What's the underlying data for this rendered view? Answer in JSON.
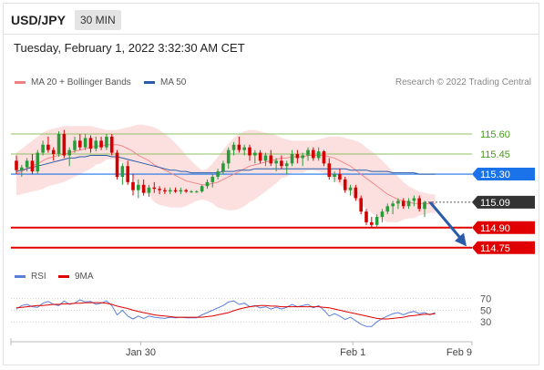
{
  "header": {
    "symbol": "USD/JPY",
    "timeframe": "30 MIN",
    "timestamp": "Tuesday, February 1, 2022 3:32:30 AM CET"
  },
  "legend": {
    "ma_bb": {
      "label": "MA 20 + Bollinger Bands",
      "color": "#f08080"
    },
    "ma50": {
      "label": "MA 50",
      "color": "#2a5aa8"
    },
    "rsi": {
      "label": "RSI",
      "color": "#5a7fd8"
    },
    "ma9": {
      "label": "9MA",
      "color": "#e00000"
    }
  },
  "research": "Research © 2022 Trading Central",
  "chart_data": {
    "type": "candlestick",
    "price_levels": [
      {
        "value": 115.6,
        "label": "115.60",
        "kind": "resistance",
        "color": "#8cc060"
      },
      {
        "value": 115.45,
        "label": "115.45",
        "kind": "resistance",
        "color": "#8cc060"
      },
      {
        "value": 115.3,
        "label": "115.30",
        "kind": "pivot",
        "color": "#1a73e8"
      },
      {
        "value": 115.09,
        "label": "115.09",
        "kind": "current",
        "color": "#333333"
      },
      {
        "value": 114.9,
        "label": "114.90",
        "kind": "support",
        "color": "#e00000"
      },
      {
        "value": 114.75,
        "label": "114.75",
        "kind": "support",
        "color": "#e00000"
      }
    ],
    "ylim": [
      114.66,
      115.75
    ],
    "candles": [
      {
        "o": 115.4,
        "h": 115.44,
        "l": 115.3,
        "c": 115.33
      },
      {
        "o": 115.33,
        "h": 115.37,
        "l": 115.28,
        "c": 115.35
      },
      {
        "o": 115.35,
        "h": 115.42,
        "l": 115.32,
        "c": 115.4
      },
      {
        "o": 115.4,
        "h": 115.45,
        "l": 115.3,
        "c": 115.32
      },
      {
        "o": 115.32,
        "h": 115.48,
        "l": 115.3,
        "c": 115.46
      },
      {
        "o": 115.46,
        "h": 115.55,
        "l": 115.44,
        "c": 115.52
      },
      {
        "o": 115.52,
        "h": 115.58,
        "l": 115.46,
        "c": 115.48
      },
      {
        "o": 115.48,
        "h": 115.5,
        "l": 115.4,
        "c": 115.45
      },
      {
        "o": 115.45,
        "h": 115.62,
        "l": 115.43,
        "c": 115.6
      },
      {
        "o": 115.6,
        "h": 115.63,
        "l": 115.42,
        "c": 115.44
      },
      {
        "o": 115.44,
        "h": 115.5,
        "l": 115.36,
        "c": 115.48
      },
      {
        "o": 115.48,
        "h": 115.58,
        "l": 115.46,
        "c": 115.55
      },
      {
        "o": 115.55,
        "h": 115.6,
        "l": 115.48,
        "c": 115.5
      },
      {
        "o": 115.5,
        "h": 115.6,
        "l": 115.48,
        "c": 115.57
      },
      {
        "o": 115.57,
        "h": 115.59,
        "l": 115.46,
        "c": 115.49
      },
      {
        "o": 115.49,
        "h": 115.58,
        "l": 115.47,
        "c": 115.55
      },
      {
        "o": 115.55,
        "h": 115.58,
        "l": 115.48,
        "c": 115.5
      },
      {
        "o": 115.5,
        "h": 115.6,
        "l": 115.48,
        "c": 115.58
      },
      {
        "o": 115.58,
        "h": 115.6,
        "l": 115.44,
        "c": 115.46
      },
      {
        "o": 115.46,
        "h": 115.48,
        "l": 115.26,
        "c": 115.28
      },
      {
        "o": 115.28,
        "h": 115.38,
        "l": 115.22,
        "c": 115.36
      },
      {
        "o": 115.36,
        "h": 115.4,
        "l": 115.22,
        "c": 115.24
      },
      {
        "o": 115.24,
        "h": 115.3,
        "l": 115.14,
        "c": 115.18
      },
      {
        "o": 115.18,
        "h": 115.26,
        "l": 115.12,
        "c": 115.22
      },
      {
        "o": 115.22,
        "h": 115.26,
        "l": 115.14,
        "c": 115.16
      },
      {
        "o": 115.16,
        "h": 115.22,
        "l": 115.13,
        "c": 115.2
      },
      {
        "o": 115.2,
        "h": 115.24,
        "l": 115.16,
        "c": 115.19
      },
      {
        "o": 115.19,
        "h": 115.21,
        "l": 115.15,
        "c": 115.18
      },
      {
        "o": 115.18,
        "h": 115.2,
        "l": 115.15,
        "c": 115.17
      },
      {
        "o": 115.17,
        "h": 115.2,
        "l": 115.15,
        "c": 115.18
      },
      {
        "o": 115.18,
        "h": 115.2,
        "l": 115.16,
        "c": 115.17
      },
      {
        "o": 115.17,
        "h": 115.2,
        "l": 115.15,
        "c": 115.18
      },
      {
        "o": 115.18,
        "h": 115.19,
        "l": 115.16,
        "c": 115.17
      },
      {
        "o": 115.17,
        "h": 115.18,
        "l": 115.16,
        "c": 115.17
      },
      {
        "o": 115.17,
        "h": 115.18,
        "l": 115.16,
        "c": 115.17
      },
      {
        "o": 115.17,
        "h": 115.22,
        "l": 115.16,
        "c": 115.21
      },
      {
        "o": 115.21,
        "h": 115.26,
        "l": 115.19,
        "c": 115.24
      },
      {
        "o": 115.24,
        "h": 115.3,
        "l": 115.2,
        "c": 115.28
      },
      {
        "o": 115.28,
        "h": 115.34,
        "l": 115.26,
        "c": 115.32
      },
      {
        "o": 115.32,
        "h": 115.4,
        "l": 115.3,
        "c": 115.38
      },
      {
        "o": 115.38,
        "h": 115.5,
        "l": 115.34,
        "c": 115.48
      },
      {
        "o": 115.48,
        "h": 115.54,
        "l": 115.44,
        "c": 115.52
      },
      {
        "o": 115.52,
        "h": 115.58,
        "l": 115.46,
        "c": 115.48
      },
      {
        "o": 115.48,
        "h": 115.52,
        "l": 115.44,
        "c": 115.5
      },
      {
        "o": 115.5,
        "h": 115.52,
        "l": 115.4,
        "c": 115.44
      },
      {
        "o": 115.44,
        "h": 115.48,
        "l": 115.38,
        "c": 115.46
      },
      {
        "o": 115.46,
        "h": 115.48,
        "l": 115.38,
        "c": 115.4
      },
      {
        "o": 115.4,
        "h": 115.46,
        "l": 115.36,
        "c": 115.44
      },
      {
        "o": 115.44,
        "h": 115.48,
        "l": 115.36,
        "c": 115.38
      },
      {
        "o": 115.38,
        "h": 115.42,
        "l": 115.32,
        "c": 115.4
      },
      {
        "o": 115.4,
        "h": 115.44,
        "l": 115.34,
        "c": 115.36
      },
      {
        "o": 115.36,
        "h": 115.4,
        "l": 115.3,
        "c": 115.38
      },
      {
        "o": 115.38,
        "h": 115.48,
        "l": 115.36,
        "c": 115.45
      },
      {
        "o": 115.45,
        "h": 115.48,
        "l": 115.38,
        "c": 115.42
      },
      {
        "o": 115.42,
        "h": 115.46,
        "l": 115.36,
        "c": 115.44
      },
      {
        "o": 115.44,
        "h": 115.5,
        "l": 115.4,
        "c": 115.48
      },
      {
        "o": 115.48,
        "h": 115.5,
        "l": 115.4,
        "c": 115.42
      },
      {
        "o": 115.42,
        "h": 115.5,
        "l": 115.4,
        "c": 115.47
      },
      {
        "o": 115.47,
        "h": 115.48,
        "l": 115.36,
        "c": 115.38
      },
      {
        "o": 115.38,
        "h": 115.42,
        "l": 115.26,
        "c": 115.28
      },
      {
        "o": 115.28,
        "h": 115.32,
        "l": 115.24,
        "c": 115.3
      },
      {
        "o": 115.3,
        "h": 115.34,
        "l": 115.24,
        "c": 115.26
      },
      {
        "o": 115.26,
        "h": 115.28,
        "l": 115.16,
        "c": 115.18
      },
      {
        "o": 115.18,
        "h": 115.22,
        "l": 115.14,
        "c": 115.2
      },
      {
        "o": 115.2,
        "h": 115.22,
        "l": 115.1,
        "c": 115.12
      },
      {
        "o": 115.12,
        "h": 115.14,
        "l": 115.0,
        "c": 115.02
      },
      {
        "o": 115.02,
        "h": 115.04,
        "l": 114.92,
        "c": 114.94
      },
      {
        "o": 114.94,
        "h": 114.98,
        "l": 114.9,
        "c": 114.92
      },
      {
        "o": 114.92,
        "h": 115.0,
        "l": 114.9,
        "c": 114.98
      },
      {
        "o": 114.98,
        "h": 115.04,
        "l": 114.94,
        "c": 115.02
      },
      {
        "o": 115.02,
        "h": 115.08,
        "l": 115.0,
        "c": 115.06
      },
      {
        "o": 115.06,
        "h": 115.1,
        "l": 115.0,
        "c": 115.08
      },
      {
        "o": 115.08,
        "h": 115.12,
        "l": 115.04,
        "c": 115.1
      },
      {
        "o": 115.1,
        "h": 115.12,
        "l": 115.04,
        "c": 115.06
      },
      {
        "o": 115.06,
        "h": 115.12,
        "l": 115.04,
        "c": 115.1
      },
      {
        "o": 115.1,
        "h": 115.14,
        "l": 115.06,
        "c": 115.12
      },
      {
        "o": 115.12,
        "h": 115.14,
        "l": 115.02,
        "c": 115.04
      },
      {
        "o": 115.04,
        "h": 115.1,
        "l": 114.98,
        "c": 115.09
      }
    ],
    "ma20": [
      115.3,
      115.32,
      115.34,
      115.36,
      115.38,
      115.4,
      115.42,
      115.43,
      115.44,
      115.45,
      115.46,
      115.47,
      115.48,
      115.49,
      115.5,
      115.51,
      115.51,
      115.52,
      115.52,
      115.52,
      115.51,
      115.49,
      115.47,
      115.44,
      115.42,
      115.4,
      115.37,
      115.35,
      115.33,
      115.31,
      115.29,
      115.27,
      115.25,
      115.24,
      115.23,
      115.22,
      115.22,
      115.23,
      115.24,
      115.26,
      115.28,
      115.3,
      115.32,
      115.34,
      115.36,
      115.37,
      115.38,
      115.39,
      115.4,
      115.41,
      115.42,
      115.42,
      115.43,
      115.43,
      115.43,
      115.44,
      115.44,
      115.44,
      115.44,
      115.43,
      115.42,
      115.4,
      115.38,
      115.36,
      115.33,
      115.3,
      115.27,
      115.24,
      115.21,
      115.18,
      115.15,
      115.13,
      115.11,
      115.1,
      115.09,
      115.08,
      115.08,
      115.08,
      115.08,
      115.08
    ],
    "bb_upper": [
      115.46,
      115.49,
      115.52,
      115.55,
      115.58,
      115.61,
      115.63,
      115.64,
      115.65,
      115.66,
      115.66,
      115.66,
      115.66,
      115.66,
      115.66,
      115.65,
      115.64,
      115.63,
      115.63,
      115.63,
      115.64,
      115.65,
      115.66,
      115.67,
      115.67,
      115.66,
      115.65,
      115.63,
      115.6,
      115.57,
      115.53,
      115.49,
      115.44,
      115.4,
      115.36,
      115.33,
      115.34,
      115.38,
      115.43,
      115.48,
      115.53,
      115.57,
      115.6,
      115.62,
      115.63,
      115.63,
      115.62,
      115.61,
      115.6,
      115.59,
      115.57,
      115.56,
      115.55,
      115.55,
      115.55,
      115.55,
      115.55,
      115.56,
      115.57,
      115.58,
      115.58,
      115.58,
      115.57,
      115.56,
      115.55,
      115.53,
      115.5,
      115.47,
      115.44,
      115.4,
      115.36,
      115.32,
      115.28,
      115.24,
      115.21,
      115.19,
      115.17,
      115.16,
      115.15,
      115.15
    ],
    "bb_lower": [
      115.14,
      115.15,
      115.16,
      115.17,
      115.18,
      115.19,
      115.21,
      115.22,
      115.23,
      115.24,
      115.26,
      115.28,
      115.3,
      115.32,
      115.34,
      115.37,
      115.38,
      115.41,
      115.41,
      115.41,
      115.38,
      115.33,
      115.28,
      115.21,
      115.17,
      115.14,
      115.09,
      115.07,
      115.06,
      115.05,
      115.05,
      115.05,
      115.06,
      115.08,
      115.1,
      115.11,
      115.1,
      115.08,
      115.05,
      115.04,
      115.03,
      115.03,
      115.04,
      115.06,
      115.09,
      115.11,
      115.14,
      115.17,
      115.2,
      115.23,
      115.27,
      115.28,
      115.31,
      115.31,
      115.31,
      115.33,
      115.33,
      115.32,
      115.31,
      115.28,
      115.26,
      115.22,
      115.19,
      115.16,
      115.11,
      115.07,
      115.04,
      115.01,
      114.98,
      114.96,
      114.94,
      114.94,
      114.94,
      114.96,
      114.97,
      114.97,
      114.99,
      115.0,
      115.01,
      115.01
    ],
    "ma50": [
      115.32,
      115.33,
      115.34,
      115.35,
      115.36,
      115.37,
      115.38,
      115.39,
      115.4,
      115.41,
      115.42,
      115.42,
      115.43,
      115.43,
      115.44,
      115.44,
      115.44,
      115.44,
      115.43,
      115.43,
      115.42,
      115.41,
      115.4,
      115.39,
      115.38,
      115.37,
      115.36,
      115.35,
      115.34,
      115.33,
      115.33,
      115.32,
      115.32,
      115.31,
      115.31,
      115.31,
      115.31,
      115.31,
      115.31,
      115.32,
      115.32,
      115.32,
      115.33,
      115.33,
      115.33,
      115.34,
      115.34,
      115.34,
      115.34,
      115.34,
      115.34,
      115.34,
      115.34,
      115.34,
      115.34,
      115.34,
      115.34,
      115.34,
      115.34,
      115.34,
      115.34,
      115.34,
      115.34,
      115.33,
      115.33,
      115.33,
      115.33,
      115.32,
      115.32,
      115.32,
      115.32,
      115.31,
      115.31,
      115.31,
      115.31,
      115.31,
      115.3,
      115.3,
      115.3,
      115.3
    ],
    "forecast_arrow": {
      "from": 115.09,
      "to": 114.76
    },
    "rsi_panel": {
      "levels": [
        {
          "value": 70,
          "label": "70"
        },
        {
          "value": 50,
          "label": "50"
        },
        {
          "value": 30,
          "label": "30"
        }
      ],
      "ylim": [
        10,
        85
      ],
      "rsi": [
        52,
        58,
        60,
        56,
        55,
        62,
        65,
        60,
        58,
        66,
        60,
        62,
        68,
        64,
        65,
        60,
        62,
        66,
        58,
        42,
        50,
        40,
        35,
        40,
        36,
        40,
        38,
        37,
        36,
        38,
        37,
        38,
        37,
        37,
        37,
        42,
        46,
        50,
        54,
        58,
        64,
        66,
        60,
        62,
        56,
        58,
        54,
        56,
        52,
        55,
        52,
        55,
        60,
        56,
        58,
        60,
        54,
        58,
        50,
        40,
        44,
        40,
        34,
        38,
        32,
        26,
        22,
        22,
        30,
        36,
        40,
        44,
        46,
        42,
        46,
        48,
        44,
        46,
        42,
        46
      ],
      "ma9": [
        54,
        55,
        56,
        57,
        58,
        58,
        59,
        60,
        60,
        61,
        61,
        62,
        62,
        63,
        63,
        63,
        63,
        62,
        60,
        57,
        55,
        53,
        50,
        48,
        46,
        44,
        42,
        41,
        40,
        39,
        38,
        38,
        38,
        38,
        38,
        38,
        39,
        40,
        42,
        44,
        46,
        49,
        52,
        54,
        56,
        57,
        58,
        58,
        57,
        57,
        56,
        56,
        56,
        56,
        56,
        56,
        56,
        56,
        55,
        54,
        52,
        50,
        48,
        46,
        44,
        42,
        40,
        38,
        36,
        35,
        35,
        36,
        37,
        38,
        40,
        41,
        42,
        43,
        43,
        44
      ]
    },
    "x_ticks": [
      {
        "label": "Jan 30",
        "index": 25
      },
      {
        "label": "Feb 1",
        "index": 65
      },
      {
        "label": "Feb 9",
        "index": 80
      }
    ]
  }
}
